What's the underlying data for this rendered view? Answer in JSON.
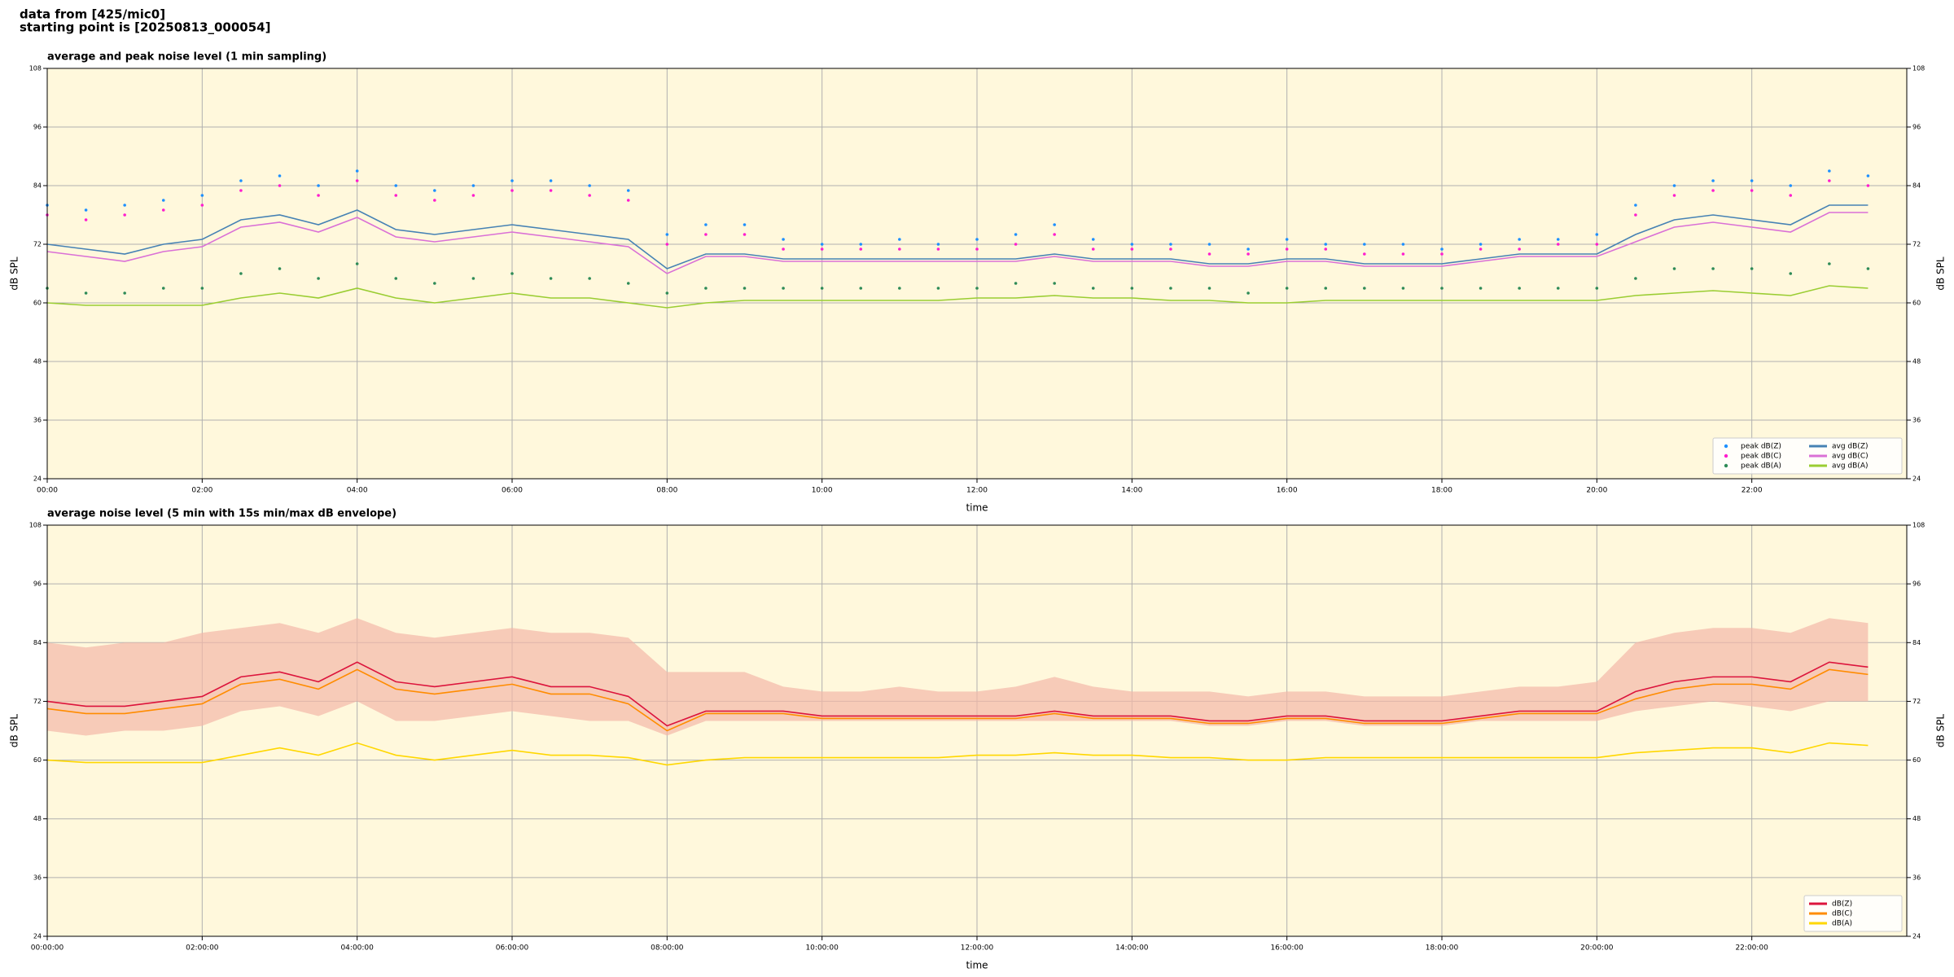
{
  "header": {
    "lines": [
      "data from [425/mic0]",
      "starting point is [20250813_000054]"
    ]
  },
  "chart_data": [
    {
      "type": "line",
      "title": "average and peak noise level (1 min sampling)",
      "xlabel": "time",
      "ylabel": "dB SPL",
      "xlim": [
        0,
        24
      ],
      "ylim": [
        24,
        108
      ],
      "yticks": [
        24,
        36,
        48,
        60,
        72,
        84,
        96,
        108
      ],
      "xticks": [
        {
          "value": 0,
          "label": "00:00"
        },
        {
          "value": 2,
          "label": "02:00"
        },
        {
          "value": 4,
          "label": "04:00"
        },
        {
          "value": 6,
          "label": "06:00"
        },
        {
          "value": 8,
          "label": "08:00"
        },
        {
          "value": 10,
          "label": "10:00"
        },
        {
          "value": 12,
          "label": "12:00"
        },
        {
          "value": 14,
          "label": "14:00"
        },
        {
          "value": 16,
          "label": "16:00"
        },
        {
          "value": 18,
          "label": "18:00"
        },
        {
          "value": 20,
          "label": "20:00"
        },
        {
          "value": 22,
          "label": "22:00"
        }
      ],
      "grid": true,
      "legend": "lower right",
      "legend_columns": 2,
      "background": "#fff8dc",
      "x": [
        0,
        0.5,
        1,
        1.5,
        2,
        2.5,
        3,
        3.5,
        4,
        4.5,
        5,
        5.5,
        6,
        6.5,
        7,
        7.5,
        8,
        8.5,
        9,
        9.5,
        10,
        10.5,
        11,
        11.5,
        12,
        12.5,
        13,
        13.5,
        14,
        14.5,
        15,
        15.5,
        16,
        16.5,
        17,
        17.5,
        18,
        18.5,
        19,
        19.5,
        20,
        20.5,
        21,
        21.5,
        22,
        22.5,
        23,
        23.5
      ],
      "series": [
        {
          "name": "peak dB(Z)",
          "color": "#1e90ff",
          "style": "dots",
          "values": [
            80,
            79,
            80,
            81,
            82,
            85,
            86,
            84,
            87,
            84,
            83,
            84,
            85,
            85,
            84,
            83,
            74,
            76,
            76,
            73,
            72,
            72,
            73,
            72,
            73,
            74,
            76,
            73,
            72,
            72,
            72,
            71,
            73,
            72,
            72,
            72,
            71,
            72,
            73,
            73,
            74,
            80,
            84,
            85,
            85,
            84,
            87,
            86
          ]
        },
        {
          "name": "peak dB(C)",
          "color": "#ff1dce",
          "style": "dots",
          "values": [
            78,
            77,
            78,
            79,
            80,
            83,
            84,
            82,
            85,
            82,
            81,
            82,
            83,
            83,
            82,
            81,
            72,
            74,
            74,
            71,
            71,
            71,
            71,
            71,
            71,
            72,
            74,
            71,
            71,
            71,
            70,
            70,
            71,
            71,
            70,
            70,
            70,
            71,
            71,
            72,
            72,
            78,
            82,
            83,
            83,
            82,
            85,
            84
          ]
        },
        {
          "name": "peak dB(A)",
          "color": "#2e8b57",
          "style": "dots",
          "values": [
            63,
            62,
            62,
            63,
            63,
            66,
            67,
            65,
            68,
            65,
            64,
            65,
            66,
            65,
            65,
            64,
            62,
            63,
            63,
            63,
            63,
            63,
            63,
            63,
            63,
            64,
            64,
            63,
            63,
            63,
            63,
            62,
            63,
            63,
            63,
            63,
            63,
            63,
            63,
            63,
            63,
            65,
            67,
            67,
            67,
            66,
            68,
            67
          ]
        },
        {
          "name": "avg dB(Z)",
          "color": "#4682b4",
          "style": "line",
          "values": [
            72,
            71,
            70,
            72,
            73,
            77,
            78,
            76,
            79,
            75,
            74,
            75,
            76,
            75,
            74,
            73,
            67,
            70,
            70,
            69,
            69,
            69,
            69,
            69,
            69,
            69,
            70,
            69,
            69,
            69,
            68,
            68,
            69,
            69,
            68,
            68,
            68,
            69,
            70,
            70,
            70,
            74,
            77,
            78,
            77,
            76,
            80,
            80
          ]
        },
        {
          "name": "avg dB(C)",
          "color": "#da70d6",
          "style": "line",
          "values": [
            70.5,
            69.5,
            68.5,
            70.5,
            71.5,
            75.5,
            76.5,
            74.5,
            77.5,
            73.5,
            72.5,
            73.5,
            74.5,
            73.5,
            72.5,
            71.5,
            66,
            69.5,
            69.5,
            68.5,
            68.5,
            68.5,
            68.5,
            68.5,
            68.5,
            68.5,
            69.5,
            68.5,
            68.5,
            68.5,
            67.5,
            67.5,
            68.5,
            68.5,
            67.5,
            67.5,
            67.5,
            68.5,
            69.5,
            69.5,
            69.5,
            72.5,
            75.5,
            76.5,
            75.5,
            74.5,
            78.5,
            78.5
          ]
        },
        {
          "name": "avg dB(A)",
          "color": "#9acd32",
          "style": "line",
          "values": [
            60,
            59.5,
            59.5,
            59.5,
            59.5,
            61,
            62,
            61,
            63,
            61,
            60,
            61,
            62,
            61,
            61,
            60,
            59,
            60,
            60.5,
            60.5,
            60.5,
            60.5,
            60.5,
            60.5,
            61,
            61,
            61.5,
            61,
            61,
            60.5,
            60.5,
            60,
            60,
            60.5,
            60.5,
            60.5,
            60.5,
            60.5,
            60.5,
            60.5,
            60.5,
            61.5,
            62,
            62.5,
            62,
            61.5,
            63.5,
            63
          ]
        }
      ]
    },
    {
      "type": "line",
      "title": "average noise level (5 min with 15s min/max dB envelope)",
      "xlabel": "time",
      "ylabel": "dB SPL",
      "xlim": [
        0,
        24
      ],
      "ylim": [
        24,
        108
      ],
      "yticks": [
        24,
        36,
        48,
        60,
        72,
        84,
        96,
        108
      ],
      "xticks": [
        {
          "value": 0,
          "label": "00:00:00"
        },
        {
          "value": 2,
          "label": "02:00:00"
        },
        {
          "value": 4,
          "label": "04:00:00"
        },
        {
          "value": 6,
          "label": "06:00:00"
        },
        {
          "value": 8,
          "label": "08:00:00"
        },
        {
          "value": 10,
          "label": "10:00:00"
        },
        {
          "value": 12,
          "label": "12:00:00"
        },
        {
          "value": 14,
          "label": "14:00:00"
        },
        {
          "value": 16,
          "label": "16:00:00"
        },
        {
          "value": 18,
          "label": "18:00:00"
        },
        {
          "value": 20,
          "label": "20:00:00"
        },
        {
          "value": 22,
          "label": "22:00:00"
        }
      ],
      "grid": true,
      "legend": "lower right",
      "legend_columns": 1,
      "background": "#fff8dc",
      "x": [
        0,
        0.5,
        1,
        1.5,
        2,
        2.5,
        3,
        3.5,
        4,
        4.5,
        5,
        5.5,
        6,
        6.5,
        7,
        7.5,
        8,
        8.5,
        9,
        9.5,
        10,
        10.5,
        11,
        11.5,
        12,
        12.5,
        13,
        13.5,
        14,
        14.5,
        15,
        15.5,
        16,
        16.5,
        17,
        17.5,
        18,
        18.5,
        19,
        19.5,
        20,
        20.5,
        21,
        21.5,
        22,
        22.5,
        23,
        23.5
      ],
      "envelope": {
        "color": "#f4b8a8",
        "lower": [
          66,
          65,
          66,
          66,
          67,
          70,
          71,
          69,
          72,
          68,
          68,
          69,
          70,
          69,
          68,
          68,
          65,
          68,
          68,
          68,
          68,
          68,
          68,
          68,
          68,
          68,
          68,
          68,
          68,
          68,
          67,
          67,
          68,
          68,
          67,
          67,
          67,
          68,
          68,
          68,
          68,
          70,
          71,
          72,
          71,
          70,
          72,
          72
        ],
        "upper": [
          84,
          83,
          84,
          84,
          86,
          87,
          88,
          86,
          89,
          86,
          85,
          86,
          87,
          86,
          86,
          85,
          78,
          78,
          78,
          75,
          74,
          74,
          75,
          74,
          74,
          75,
          77,
          75,
          74,
          74,
          74,
          73,
          74,
          74,
          73,
          73,
          73,
          74,
          75,
          75,
          76,
          84,
          86,
          87,
          87,
          86,
          89,
          88
        ]
      },
      "series": [
        {
          "name": "dB(Z)",
          "color": "#dc143c",
          "style": "line",
          "values": [
            72,
            71,
            71,
            72,
            73,
            77,
            78,
            76,
            80,
            76,
            75,
            76,
            77,
            75,
            75,
            73,
            67,
            70,
            70,
            70,
            69,
            69,
            69,
            69,
            69,
            69,
            70,
            69,
            69,
            69,
            68,
            68,
            69,
            69,
            68,
            68,
            68,
            69,
            70,
            70,
            70,
            74,
            76,
            77,
            77,
            76,
            80,
            79
          ]
        },
        {
          "name": "dB(C)",
          "color": "#ff8c00",
          "style": "line",
          "values": [
            70.5,
            69.5,
            69.5,
            70.5,
            71.5,
            75.5,
            76.5,
            74.5,
            78.5,
            74.5,
            73.5,
            74.5,
            75.5,
            73.5,
            73.5,
            71.5,
            66,
            69.5,
            69.5,
            69.5,
            68.5,
            68.5,
            68.5,
            68.5,
            68.5,
            68.5,
            69.5,
            68.5,
            68.5,
            68.5,
            67.5,
            67.5,
            68.5,
            68.5,
            67.5,
            67.5,
            67.5,
            68.5,
            69.5,
            69.5,
            69.5,
            72.5,
            74.5,
            75.5,
            75.5,
            74.5,
            78.5,
            77.5
          ]
        },
        {
          "name": "dB(A)",
          "color": "#ffd700",
          "style": "line",
          "values": [
            60,
            59.5,
            59.5,
            59.5,
            59.5,
            61,
            62.5,
            61,
            63.5,
            61,
            60,
            61,
            62,
            61,
            61,
            60.5,
            59,
            60,
            60.5,
            60.5,
            60.5,
            60.5,
            60.5,
            60.5,
            61,
            61,
            61.5,
            61,
            61,
            60.5,
            60.5,
            60,
            60,
            60.5,
            60.5,
            60.5,
            60.5,
            60.5,
            60.5,
            60.5,
            60.5,
            61.5,
            62,
            62.5,
            62.5,
            61.5,
            63.5,
            63
          ]
        }
      ]
    }
  ]
}
